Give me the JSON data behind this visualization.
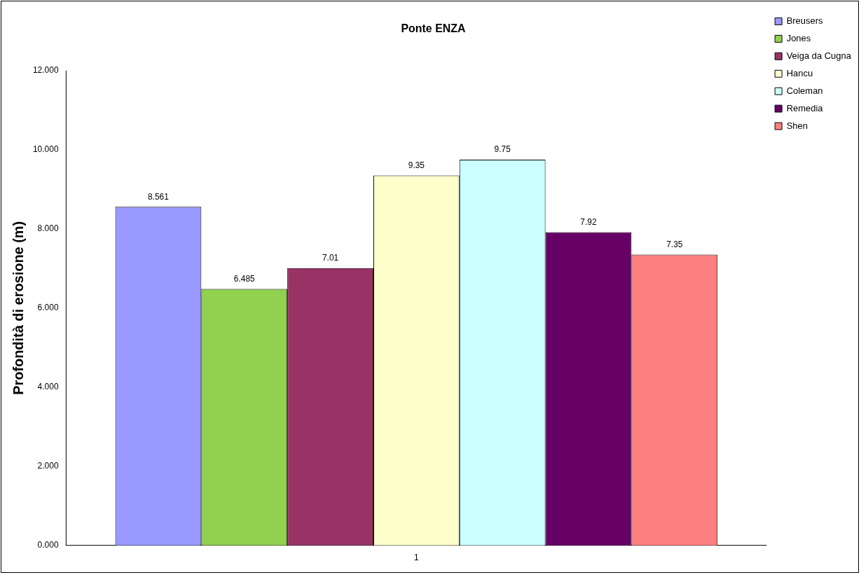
{
  "chart_data": {
    "type": "bar",
    "title": "Ponte ENZA",
    "ylabel": "Profondità di erosione (m)",
    "categories": [
      "1"
    ],
    "series": [
      {
        "name": "Breusers",
        "color": "#9999ff",
        "values": [
          8.561
        ]
      },
      {
        "name": "Jones",
        "color": "#92d050",
        "values": [
          6.485
        ]
      },
      {
        "name": "Veiga da Cugna",
        "color": "#993366",
        "values": [
          7.01
        ]
      },
      {
        "name": "Hancu",
        "color": "#ffffcc",
        "values": [
          9.35
        ]
      },
      {
        "name": "Coleman",
        "color": "#ccffff",
        "values": [
          9.75
        ]
      },
      {
        "name": "Remedia",
        "color": "#660066",
        "values": [
          7.92
        ]
      },
      {
        "name": "Shen",
        "color": "#ff8080",
        "values": [
          7.35
        ]
      }
    ],
    "ylim": [
      0,
      12
    ],
    "yticks": [
      {
        "value": 0,
        "label": "0.000"
      },
      {
        "value": 2,
        "label": "2.000"
      },
      {
        "value": 4,
        "label": "4.000"
      },
      {
        "value": 6,
        "label": "6.000"
      },
      {
        "value": 8,
        "label": "8.000"
      },
      {
        "value": 10,
        "label": "10.000"
      },
      {
        "value": 12,
        "label": "12.000"
      }
    ],
    "data_labels": true,
    "legend": "top right",
    "grid": false
  }
}
